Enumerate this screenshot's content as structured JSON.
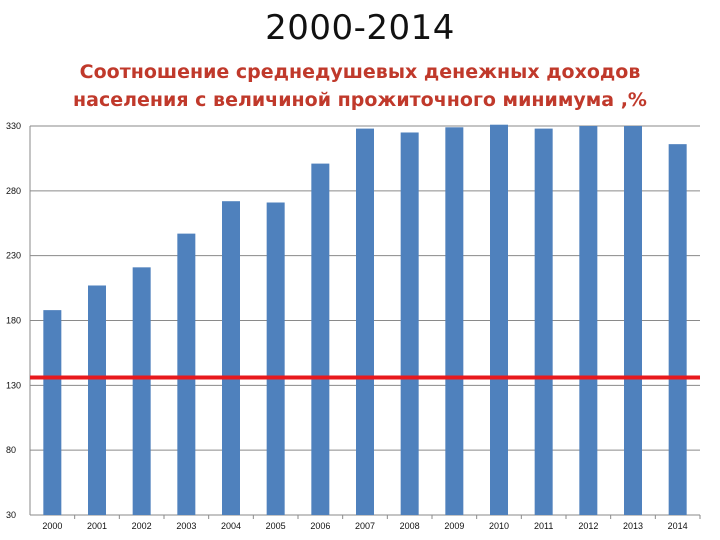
{
  "slide_title": "2000-2014",
  "chart_data": {
    "type": "bar",
    "title": "Соотношение среднедушевых денежных доходов населения с величиной прожиточного минимума ,%",
    "categories": [
      "2000",
      "2001",
      "2002",
      "2003",
      "2004",
      "2005",
      "2006",
      "2007",
      "2008",
      "2009",
      "2010",
      "2011",
      "2012",
      "2013",
      "2014"
    ],
    "values": [
      188,
      207,
      221,
      247,
      272,
      271,
      301,
      328,
      325,
      329,
      331,
      328,
      330,
      330,
      316
    ],
    "ylim": [
      30,
      330
    ],
    "yticks": [
      30,
      80,
      130,
      180,
      230,
      280,
      330
    ],
    "grid": true,
    "bar_color": "#4f81bd",
    "reference_line": {
      "value": 136,
      "color": "#e8191d"
    }
  }
}
